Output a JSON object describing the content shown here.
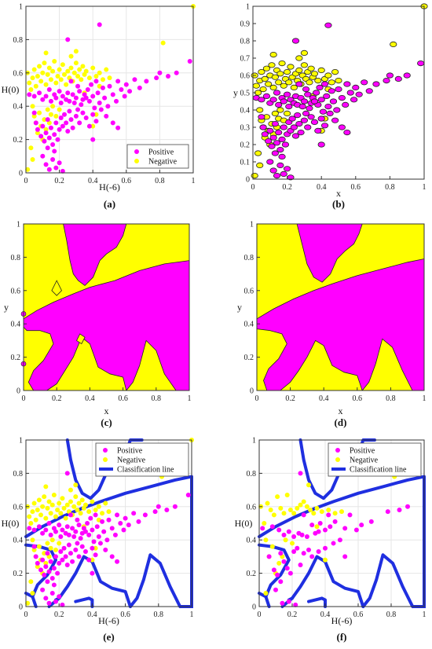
{
  "colors": {
    "positive": "#ff00ff",
    "negative": "#ffff00",
    "line": "#1f2fe0",
    "grid": "#e6e6e6",
    "axis": "#333333"
  },
  "chart_data": [
    {
      "panel": "a",
      "type": "scatter",
      "caption": "(a)",
      "xlabel": "H(-6)",
      "ylabel": "H(0)",
      "xlim": [
        0,
        1
      ],
      "ylim": [
        0,
        1
      ],
      "xticks": [
        "0",
        "0.2",
        "0.4",
        "0.6",
        "0.8",
        "1"
      ],
      "yticks": [
        "0",
        "0.2",
        "0.4",
        "0.6",
        "0.8",
        "1"
      ],
      "grid": true,
      "legend": {
        "placement": "bottom-right",
        "entries": [
          "Positive",
          "Negative"
        ]
      }
    },
    {
      "panel": "b",
      "type": "scatter",
      "caption": "(b)",
      "xlabel": "x",
      "ylabel": "y",
      "xlim": [
        0,
        1
      ],
      "ylim": [
        0,
        1
      ],
      "xticks": [
        "0",
        "0.2",
        "0.4",
        "0.6",
        "0.8",
        "1"
      ],
      "yticks": [
        "0",
        "0.1",
        "0.2",
        "0.3",
        "0.4",
        "0.5",
        "0.6",
        "0.7",
        "0.8",
        "0.9",
        "1"
      ],
      "grid": false
    },
    {
      "panel": "c",
      "type": "heatmap",
      "caption": "(c)",
      "xlabel": "x",
      "ylabel": "y",
      "xlim": [
        0,
        1
      ],
      "ylim": [
        0,
        1
      ],
      "xticks": [
        "0",
        "0.2",
        "0.4",
        "0.6",
        "0.8",
        "1"
      ],
      "yticks": [
        "0",
        "0.2",
        "0.4",
        "0.6",
        "0.8",
        "1"
      ],
      "grid": false
    },
    {
      "panel": "d",
      "type": "heatmap",
      "caption": "(d)",
      "xlabel": "x",
      "ylabel": "y",
      "xlim": [
        0,
        1
      ],
      "ylim": [
        0,
        1
      ],
      "xticks": [
        "0",
        "0.2",
        "0.4",
        "0.6",
        "0.8",
        "1"
      ],
      "yticks": [
        "0",
        "0.2",
        "0.4",
        "0.6",
        "0.8",
        "1"
      ],
      "grid": false
    },
    {
      "panel": "e",
      "type": "scatter",
      "caption": "(e)",
      "xlabel": "H(-6)",
      "ylabel": "H(0)",
      "xlim": [
        0,
        1
      ],
      "ylim": [
        0,
        1
      ],
      "xticks": [
        "0",
        "0.2",
        "0.4",
        "0.6",
        "0.8",
        "1"
      ],
      "yticks": [
        "0",
        "0.2",
        "0.4",
        "0.6",
        "0.8",
        "1"
      ],
      "grid": true,
      "legend": {
        "placement": "top-right",
        "entries": [
          "Positive",
          "Negative",
          "Classification line"
        ]
      }
    },
    {
      "panel": "f",
      "type": "scatter",
      "caption": "(f)",
      "xlabel": "H(-6)",
      "ylabel": "H(0)",
      "xlim": [
        0,
        1
      ],
      "ylim": [
        0,
        1
      ],
      "xticks": [
        "0",
        "0.2",
        "0.4",
        "0.6",
        "0.8",
        "1"
      ],
      "yticks": [
        "0",
        "0.2",
        "0.4",
        "0.6",
        "0.8",
        "1"
      ],
      "grid": true,
      "legend": {
        "placement": "top-right",
        "entries": [
          "Positive",
          "Negative",
          "Classification line"
        ]
      }
    }
  ],
  "scatter_points": {
    "positive": [
      [
        0.02,
        0.47
      ],
      [
        0.05,
        0.46
      ],
      [
        0.08,
        0.48
      ],
      [
        0.1,
        0.44
      ],
      [
        0.12,
        0.46
      ],
      [
        0.14,
        0.5
      ],
      [
        0.15,
        0.43
      ],
      [
        0.17,
        0.47
      ],
      [
        0.18,
        0.45
      ],
      [
        0.2,
        0.49
      ],
      [
        0.21,
        0.42
      ],
      [
        0.22,
        0.46
      ],
      [
        0.24,
        0.44
      ],
      [
        0.25,
        0.48
      ],
      [
        0.26,
        0.43
      ],
      [
        0.28,
        0.47
      ],
      [
        0.29,
        0.42
      ],
      [
        0.3,
        0.45
      ],
      [
        0.32,
        0.49
      ],
      [
        0.33,
        0.41
      ],
      [
        0.34,
        0.44
      ],
      [
        0.35,
        0.47
      ],
      [
        0.37,
        0.5
      ],
      [
        0.38,
        0.43
      ],
      [
        0.4,
        0.46
      ],
      [
        0.41,
        0.39
      ],
      [
        0.43,
        0.48
      ],
      [
        0.44,
        0.42
      ],
      [
        0.46,
        0.51
      ],
      [
        0.47,
        0.45
      ],
      [
        0.49,
        0.4
      ],
      [
        0.5,
        0.52
      ],
      [
        0.52,
        0.47
      ],
      [
        0.54,
        0.43
      ],
      [
        0.55,
        0.55
      ],
      [
        0.57,
        0.5
      ],
      [
        0.59,
        0.46
      ],
      [
        0.6,
        0.53
      ],
      [
        0.62,
        0.49
      ],
      [
        0.65,
        0.56
      ],
      [
        0.68,
        0.51
      ],
      [
        0.72,
        0.55
      ],
      [
        0.78,
        0.57
      ],
      [
        0.8,
        0.6
      ],
      [
        0.85,
        0.58
      ],
      [
        0.98,
        0.67
      ],
      [
        0.9,
        0.6
      ],
      [
        0.44,
        0.89
      ],
      [
        0.25,
        0.8
      ],
      [
        0.05,
        0.36
      ],
      [
        0.06,
        0.3
      ],
      [
        0.07,
        0.26
      ],
      [
        0.09,
        0.22
      ],
      [
        0.1,
        0.28
      ],
      [
        0.11,
        0.19
      ],
      [
        0.12,
        0.24
      ],
      [
        0.13,
        0.32
      ],
      [
        0.14,
        0.21
      ],
      [
        0.15,
        0.27
      ],
      [
        0.16,
        0.17
      ],
      [
        0.17,
        0.23
      ],
      [
        0.18,
        0.3
      ],
      [
        0.19,
        0.2
      ],
      [
        0.2,
        0.26
      ],
      [
        0.21,
        0.33
      ],
      [
        0.22,
        0.28
      ],
      [
        0.23,
        0.35
      ],
      [
        0.24,
        0.3
      ],
      [
        0.25,
        0.25
      ],
      [
        0.26,
        0.37
      ],
      [
        0.27,
        0.32
      ],
      [
        0.28,
        0.27
      ],
      [
        0.3,
        0.34
      ],
      [
        0.31,
        0.38
      ],
      [
        0.32,
        0.3
      ],
      [
        0.34,
        0.36
      ],
      [
        0.36,
        0.33
      ],
      [
        0.38,
        0.28
      ],
      [
        0.4,
        0.35
      ],
      [
        0.42,
        0.31
      ],
      [
        0.45,
        0.38
      ],
      [
        0.48,
        0.34
      ],
      [
        0.52,
        0.3
      ],
      [
        0.55,
        0.27
      ],
      [
        0.1,
        0.1
      ],
      [
        0.12,
        0.05
      ],
      [
        0.14,
        0.02
      ],
      [
        0.16,
        0.08
      ],
      [
        0.18,
        0.03
      ],
      [
        0.2,
        0.06
      ],
      [
        0.22,
        0.01
      ],
      [
        0.17,
        0.13
      ],
      [
        0.13,
        0.15
      ],
      [
        0.4,
        0.2
      ],
      [
        0.36,
        0.45
      ],
      [
        0.39,
        0.53
      ],
      [
        0.42,
        0.55
      ],
      [
        0.31,
        0.52
      ],
      [
        0.27,
        0.55
      ]
    ],
    "negative": [
      [
        0.01,
        0.6
      ],
      [
        0.02,
        0.54
      ],
      [
        0.03,
        0.5
      ],
      [
        0.04,
        0.57
      ],
      [
        0.05,
        0.62
      ],
      [
        0.06,
        0.52
      ],
      [
        0.07,
        0.58
      ],
      [
        0.08,
        0.64
      ],
      [
        0.09,
        0.55
      ],
      [
        0.1,
        0.6
      ],
      [
        0.11,
        0.66
      ],
      [
        0.12,
        0.53
      ],
      [
        0.13,
        0.59
      ],
      [
        0.14,
        0.63
      ],
      [
        0.15,
        0.56
      ],
      [
        0.16,
        0.61
      ],
      [
        0.17,
        0.67
      ],
      [
        0.18,
        0.54
      ],
      [
        0.19,
        0.58
      ],
      [
        0.2,
        0.62
      ],
      [
        0.21,
        0.56
      ],
      [
        0.22,
        0.65
      ],
      [
        0.23,
        0.59
      ],
      [
        0.24,
        0.53
      ],
      [
        0.25,
        0.61
      ],
      [
        0.26,
        0.57
      ],
      [
        0.27,
        0.63
      ],
      [
        0.28,
        0.55
      ],
      [
        0.29,
        0.6
      ],
      [
        0.3,
        0.66
      ],
      [
        0.31,
        0.58
      ],
      [
        0.32,
        0.62
      ],
      [
        0.33,
        0.56
      ],
      [
        0.34,
        0.64
      ],
      [
        0.35,
        0.59
      ],
      [
        0.36,
        0.61
      ],
      [
        0.38,
        0.57
      ],
      [
        0.4,
        0.63
      ],
      [
        0.42,
        0.58
      ],
      [
        0.44,
        0.6
      ],
      [
        0.46,
        0.56
      ],
      [
        0.48,
        0.62
      ],
      [
        0.5,
        0.57
      ],
      [
        0.27,
        0.7
      ],
      [
        0.3,
        0.73
      ],
      [
        0.12,
        0.72
      ],
      [
        0.82,
        0.78
      ],
      [
        1.0,
        1.0
      ],
      [
        0.04,
        0.4
      ],
      [
        0.05,
        0.34
      ],
      [
        0.06,
        0.3
      ],
      [
        0.07,
        0.24
      ],
      [
        0.08,
        0.36
      ],
      [
        0.09,
        0.28
      ],
      [
        0.1,
        0.2
      ],
      [
        0.11,
        0.32
      ],
      [
        0.12,
        0.26
      ],
      [
        0.13,
        0.38
      ],
      [
        0.14,
        0.3
      ],
      [
        0.15,
        0.35
      ],
      [
        0.16,
        0.4
      ],
      [
        0.18,
        0.34
      ],
      [
        0.2,
        0.38
      ],
      [
        0.03,
        0.15
      ],
      [
        0.04,
        0.08
      ],
      [
        0.01,
        0.02
      ],
      [
        0.4,
        0.28
      ],
      [
        0.42,
        0.35
      ],
      [
        0.35,
        0.48
      ],
      [
        0.44,
        0.52
      ]
    ]
  },
  "regions": {
    "c": [
      [
        [
          0.24,
          1.0
        ],
        [
          0.26,
          0.9
        ],
        [
          0.28,
          0.78
        ],
        [
          0.3,
          0.7
        ],
        [
          0.33,
          0.66
        ],
        [
          0.37,
          0.63
        ],
        [
          0.42,
          0.68
        ],
        [
          0.46,
          0.78
        ],
        [
          0.5,
          0.82
        ],
        [
          0.56,
          0.86
        ],
        [
          0.6,
          0.93
        ],
        [
          0.62,
          1.0
        ]
      ],
      [
        [
          0.0,
          0.43
        ],
        [
          0.08,
          0.48
        ],
        [
          0.18,
          0.53
        ],
        [
          0.3,
          0.58
        ],
        [
          0.4,
          0.62
        ],
        [
          0.55,
          0.66
        ],
        [
          0.7,
          0.72
        ],
        [
          0.85,
          0.76
        ],
        [
          1.0,
          0.78
        ],
        [
          1.0,
          0.0
        ],
        [
          0.92,
          0.0
        ],
        [
          0.85,
          0.1
        ],
        [
          0.8,
          0.24
        ],
        [
          0.74,
          0.3
        ],
        [
          0.7,
          0.15
        ],
        [
          0.66,
          0.05
        ],
        [
          0.62,
          0.0
        ],
        [
          0.6,
          0.08
        ],
        [
          0.52,
          0.1
        ],
        [
          0.45,
          0.14
        ],
        [
          0.4,
          0.28
        ],
        [
          0.35,
          0.32
        ],
        [
          0.3,
          0.2
        ],
        [
          0.25,
          0.12
        ],
        [
          0.2,
          0.04
        ],
        [
          0.14,
          0.0
        ],
        [
          0.06,
          0.0
        ],
        [
          0.03,
          0.05
        ],
        [
          0.06,
          0.12
        ],
        [
          0.12,
          0.18
        ],
        [
          0.18,
          0.28
        ],
        [
          0.16,
          0.34
        ],
        [
          0.1,
          0.36
        ],
        [
          0.02,
          0.36
        ],
        [
          0.0,
          0.38
        ]
      ]
    ],
    "c_holes": [
      [
        [
          0.17,
          0.6
        ],
        [
          0.2,
          0.66
        ],
        [
          0.23,
          0.6
        ],
        [
          0.2,
          0.57
        ]
      ],
      [
        [
          0.32,
          0.3
        ],
        [
          0.34,
          0.34
        ],
        [
          0.37,
          0.32
        ],
        [
          0.35,
          0.28
        ]
      ]
    ],
    "d": [
      [
        [
          0.24,
          1.0
        ],
        [
          0.27,
          0.88
        ],
        [
          0.3,
          0.76
        ],
        [
          0.34,
          0.68
        ],
        [
          0.39,
          0.65
        ],
        [
          0.44,
          0.7
        ],
        [
          0.48,
          0.79
        ],
        [
          0.53,
          0.84
        ],
        [
          0.58,
          0.88
        ],
        [
          0.61,
          0.94
        ],
        [
          0.63,
          1.0
        ]
      ],
      [
        [
          0.0,
          0.43
        ],
        [
          0.1,
          0.49
        ],
        [
          0.22,
          0.55
        ],
        [
          0.34,
          0.6
        ],
        [
          0.45,
          0.64
        ],
        [
          0.6,
          0.69
        ],
        [
          0.75,
          0.73
        ],
        [
          0.9,
          0.77
        ],
        [
          1.0,
          0.79
        ],
        [
          1.0,
          0.0
        ],
        [
          0.93,
          0.0
        ],
        [
          0.87,
          0.12
        ],
        [
          0.81,
          0.26
        ],
        [
          0.75,
          0.31
        ],
        [
          0.71,
          0.16
        ],
        [
          0.67,
          0.05
        ],
        [
          0.63,
          0.0
        ],
        [
          0.6,
          0.09
        ],
        [
          0.52,
          0.11
        ],
        [
          0.45,
          0.15
        ],
        [
          0.4,
          0.27
        ],
        [
          0.35,
          0.3
        ],
        [
          0.3,
          0.2
        ],
        [
          0.25,
          0.12
        ],
        [
          0.2,
          0.05
        ],
        [
          0.14,
          0.0
        ],
        [
          0.06,
          0.0
        ],
        [
          0.04,
          0.06
        ],
        [
          0.07,
          0.13
        ],
        [
          0.13,
          0.19
        ],
        [
          0.18,
          0.28
        ],
        [
          0.15,
          0.34
        ],
        [
          0.08,
          0.36
        ],
        [
          0.0,
          0.37
        ]
      ]
    ]
  }
}
